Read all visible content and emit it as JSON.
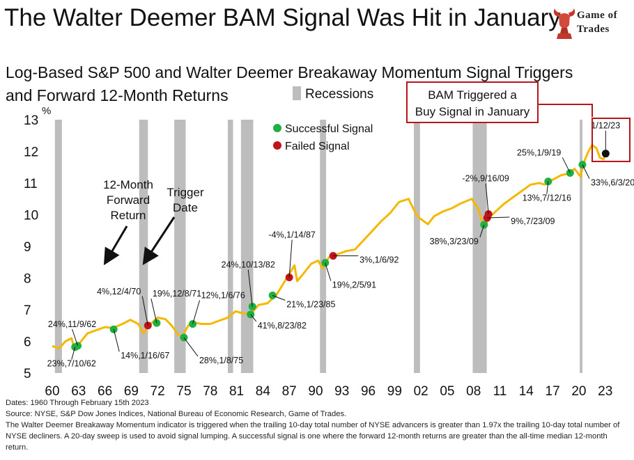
{
  "header": {
    "title": "The Walter Deemer BAM Signal Was Hit in January",
    "logo_line1": "Game of",
    "logo_line2": "Trades",
    "logo_icon": "bull-head-icon"
  },
  "colors": {
    "line": "#f5b800",
    "success": "#1fb040",
    "failed": "#c0141a",
    "recession": "#bdbdbd",
    "callout_border": "#b8141c",
    "latest": "#111111"
  },
  "chart_data": {
    "type": "line",
    "title": "Log-Based S&P 500 and Walter Deemer Breakaway Momentum Signal Triggers",
    "subtitle": "and Forward 12-Month Returns",
    "ylabel": "%",
    "ylim": [
      5,
      13
    ],
    "xlim": [
      1960,
      2023.5
    ],
    "yticks": [
      5,
      6,
      7,
      8,
      9,
      10,
      11,
      12,
      13
    ],
    "xticks": [
      {
        "value": 1960,
        "label": "60"
      },
      {
        "value": 1963,
        "label": "63"
      },
      {
        "value": 1966,
        "label": "66"
      },
      {
        "value": 1969,
        "label": "69"
      },
      {
        "value": 1972,
        "label": "72"
      },
      {
        "value": 1975,
        "label": "75"
      },
      {
        "value": 1978,
        "label": "78"
      },
      {
        "value": 1981,
        "label": "81"
      },
      {
        "value": 1984,
        "label": "84"
      },
      {
        "value": 1987,
        "label": "87"
      },
      {
        "value": 1990,
        "label": "90"
      },
      {
        "value": 1993,
        "label": "93"
      },
      {
        "value": 1996,
        "label": "96"
      },
      {
        "value": 1999,
        "label": "99"
      },
      {
        "value": 2002,
        "label": "02"
      },
      {
        "value": 2005,
        "label": "05"
      },
      {
        "value": 2008,
        "label": "08"
      },
      {
        "value": 2011,
        "label": "11"
      },
      {
        "value": 2014,
        "label": "14"
      },
      {
        "value": 2017,
        "label": "17"
      },
      {
        "value": 2020,
        "label": "20"
      },
      {
        "value": 2023,
        "label": "23"
      }
    ],
    "legend": {
      "recessions": "Recessions",
      "successful": "Successful Signal",
      "failed": "Failed Signal"
    },
    "recessions": [
      [
        1960.3,
        1961.1
      ],
      [
        1969.9,
        1970.9
      ],
      [
        1973.9,
        1975.2
      ],
      [
        1980.0,
        1980.6
      ],
      [
        1981.5,
        1982.9
      ],
      [
        1990.5,
        1991.2
      ],
      [
        2001.2,
        2001.9
      ],
      [
        2007.9,
        2009.5
      ],
      [
        2020.1,
        2020.4
      ]
    ],
    "series": [
      {
        "x": [
          1960.0,
          1960.8,
          1961.5,
          1962.2,
          1962.5,
          1963.0,
          1964.0,
          1965.0,
          1966.0,
          1966.9,
          1968.0,
          1968.9,
          1969.8,
          1970.4,
          1971.0,
          1972.0,
          1972.9,
          1973.6,
          1974.4,
          1974.8,
          1975.5,
          1976.0,
          1977.0,
          1978.0,
          1979.0,
          1980.0,
          1980.9,
          1981.5,
          1982.6,
          1983.5,
          1984.5,
          1985.5,
          1986.5,
          1987.6,
          1987.9,
          1988.5,
          1989.5,
          1990.3,
          1990.8,
          1991.5,
          1992.5,
          1993.5,
          1994.5,
          1995.5,
          1996.5,
          1997.5,
          1998.5,
          1999.5,
          2000.6,
          2001.3,
          2001.8,
          2002.8,
          2003.5,
          2004.5,
          2005.5,
          2006.5,
          2007.8,
          2008.5,
          2009.2,
          2009.8,
          2010.5,
          2011.5,
          2012.5,
          2013.5,
          2014.5,
          2015.5,
          2016.1,
          2017.0,
          2018.0,
          2018.9,
          2019.5,
          2020.2,
          2020.5,
          2021.0,
          2021.5,
          2022.0,
          2022.4,
          2022.8,
          2023.1
        ],
        "y": [
          5.85,
          5.78,
          6.0,
          6.1,
          5.8,
          5.9,
          6.25,
          6.35,
          6.45,
          6.42,
          6.55,
          6.68,
          6.55,
          6.25,
          6.5,
          6.75,
          6.7,
          6.5,
          6.2,
          6.15,
          6.5,
          6.6,
          6.55,
          6.55,
          6.65,
          6.75,
          6.95,
          6.9,
          6.85,
          7.15,
          7.2,
          7.45,
          7.9,
          8.4,
          7.9,
          8.1,
          8.45,
          8.55,
          8.3,
          8.65,
          8.75,
          8.85,
          8.9,
          9.2,
          9.5,
          9.8,
          10.05,
          10.4,
          10.5,
          10.1,
          9.9,
          9.7,
          9.95,
          10.1,
          10.2,
          10.35,
          10.5,
          10.2,
          9.6,
          9.9,
          10.1,
          10.35,
          10.55,
          10.75,
          10.95,
          11.0,
          10.95,
          11.1,
          11.25,
          11.3,
          11.45,
          11.2,
          11.6,
          11.95,
          12.2,
          12.1,
          11.8,
          11.75,
          11.95
        ]
      }
    ],
    "signals": [
      {
        "x": 1962.6,
        "y": 5.82,
        "type": "successful",
        "label": "23%,7/10/62"
      },
      {
        "x": 1962.9,
        "y": 5.86,
        "type": "successful",
        "label": "24%,11/9/62"
      },
      {
        "x": 1967.0,
        "y": 6.38,
        "type": "successful",
        "label": "14%,1/16/67"
      },
      {
        "x": 1970.9,
        "y": 6.5,
        "type": "failed",
        "label": "4%,12/4/70"
      },
      {
        "x": 1971.9,
        "y": 6.58,
        "type": "successful",
        "label": "19%,12/8/71"
      },
      {
        "x": 1975.0,
        "y": 6.12,
        "type": "successful",
        "label": "28%,1/8/75"
      },
      {
        "x": 1976.0,
        "y": 6.55,
        "type": "successful",
        "label": "12%,1/6/76"
      },
      {
        "x": 1982.6,
        "y": 6.85,
        "type": "successful",
        "label": "41%,8/23/82"
      },
      {
        "x": 1982.8,
        "y": 7.1,
        "type": "successful",
        "label": "24%,10/13/82"
      },
      {
        "x": 1985.1,
        "y": 7.45,
        "type": "successful",
        "label": "21%,1/23/85"
      },
      {
        "x": 1987.0,
        "y": 8.02,
        "type": "failed",
        "label": "-4%,1/14/87"
      },
      {
        "x": 1991.1,
        "y": 8.48,
        "type": "successful",
        "label": "19%,2/5/91"
      },
      {
        "x": 1992.0,
        "y": 8.7,
        "type": "failed",
        "label": "3%,1/6/92"
      },
      {
        "x": 2009.2,
        "y": 9.68,
        "type": "successful",
        "label": "38%,3/23/09"
      },
      {
        "x": 2009.55,
        "y": 9.9,
        "type": "failed",
        "label": "9%,7/23/09"
      },
      {
        "x": 2009.7,
        "y": 10.02,
        "type": "failed",
        "label": "-2%,9/16/09"
      },
      {
        "x": 2016.5,
        "y": 11.05,
        "type": "successful",
        "label": "13%,7/12/16"
      },
      {
        "x": 2019.0,
        "y": 11.32,
        "type": "successful",
        "label": "25%,1/9/19"
      },
      {
        "x": 2020.4,
        "y": 11.58,
        "type": "successful",
        "label": "33%,6/3/20"
      },
      {
        "x": 2023.05,
        "y": 11.93,
        "type": "latest",
        "label": "1/12/23"
      }
    ],
    "annotations": {
      "forward_return_line1": "12-Month",
      "forward_return_line2": "Forward",
      "forward_return_line3": "Return",
      "trigger_line1": "Trigger",
      "trigger_line2": "Date",
      "callout_line1": "BAM Triggered a",
      "callout_line2": "Buy Signal in January"
    }
  },
  "footer": {
    "dates": "Dates: 1960 Through  February 15th 2023",
    "source": "Source: NYSE, S&P Dow Jones Indices, National Bureau of Economic Research, Game of Trades.",
    "note": "The Walter Deemer Breakaway Momentum  indicator is triggered when the trailing  10-day total number of NYSE advancers is greater than 1.97x  the trailing  10-day total number of NYSE decliners. A 20-day sweep is used to avoid signal lumping.  A successful signal is one where the forward  12-month returns are greater than the all-time median 12-month  return."
  }
}
